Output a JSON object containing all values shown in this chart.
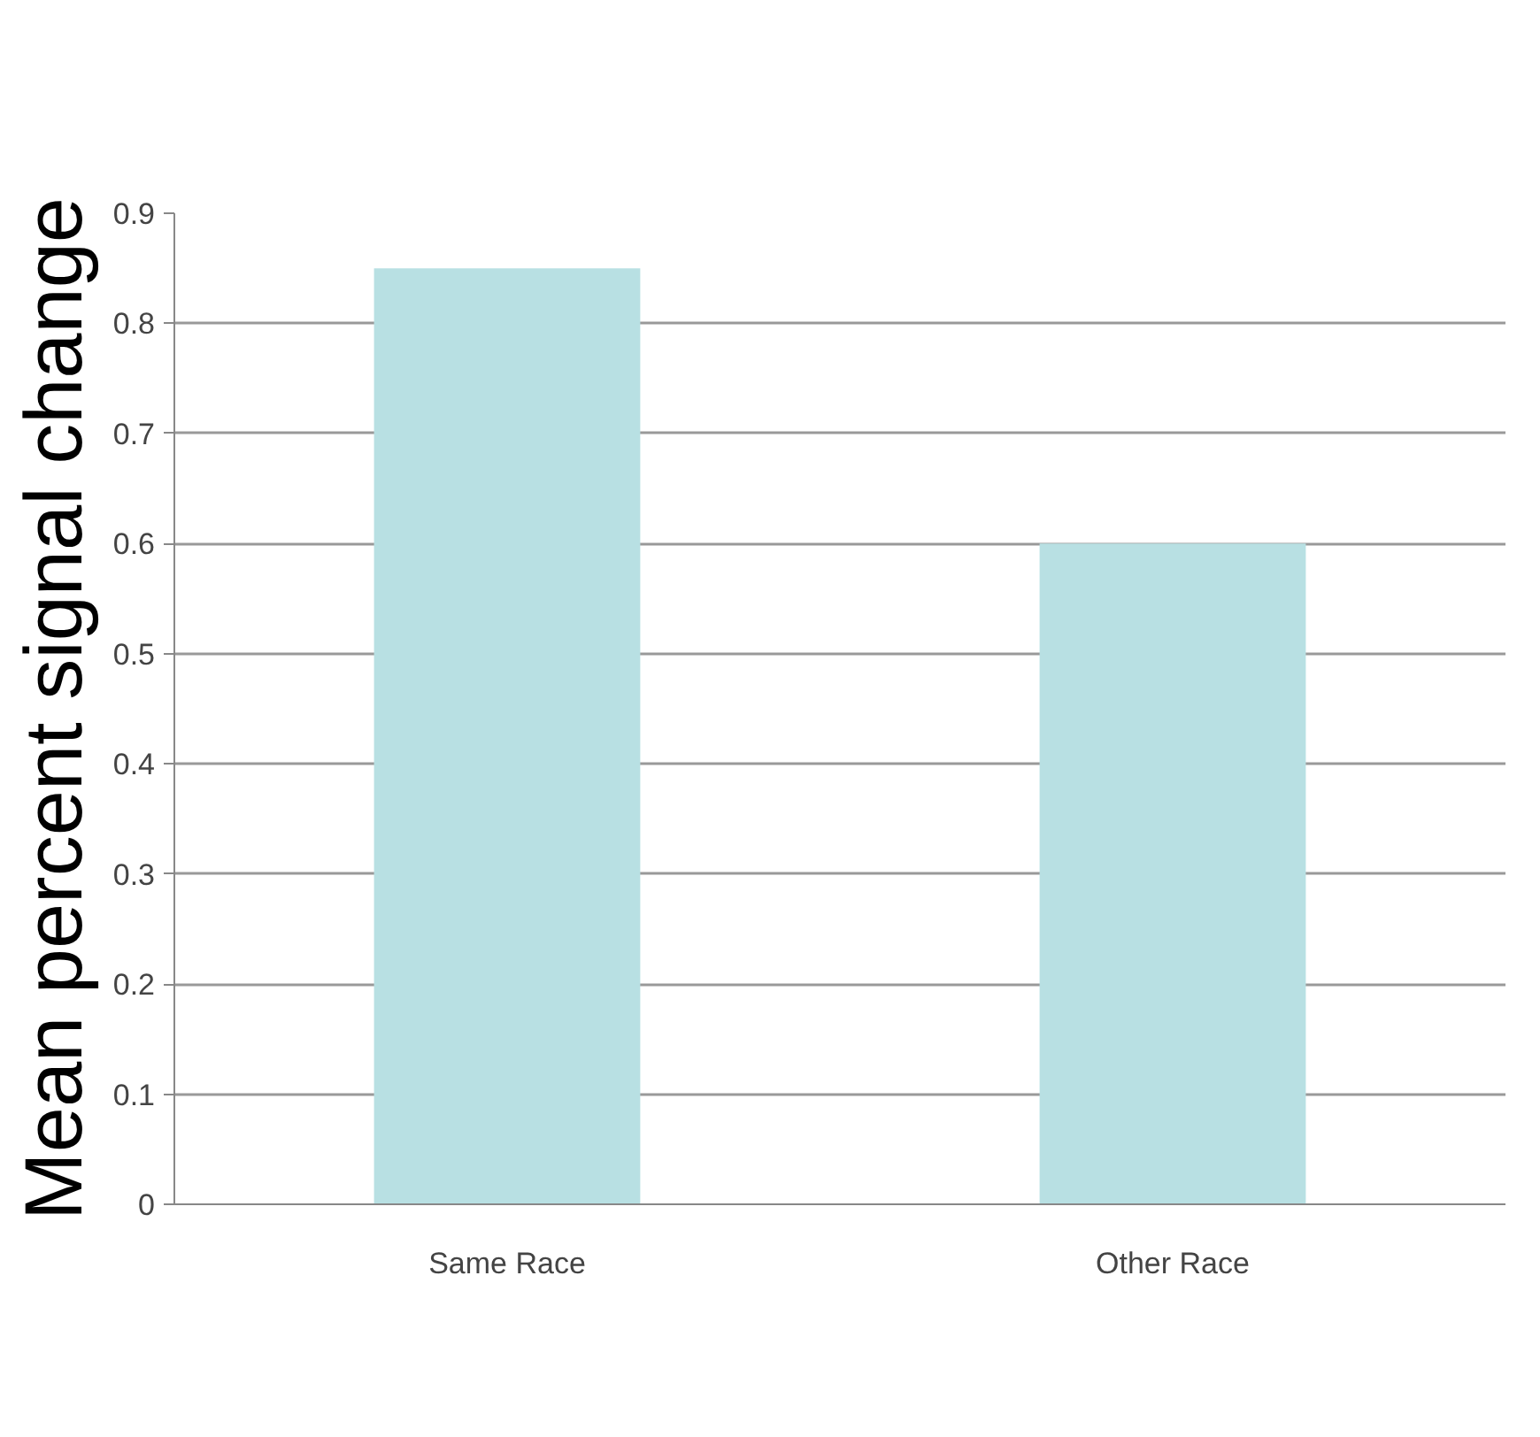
{
  "chart_data": {
    "type": "bar",
    "ylabel": "Mean percent signal change",
    "categories": [
      "Same Race",
      "Other Race"
    ],
    "values": [
      0.85,
      0.6
    ],
    "color": "#b8e0e3",
    "ylim": [
      0,
      0.9
    ],
    "yticks": [
      0,
      0.1,
      0.2,
      0.3,
      0.4,
      0.5,
      0.6,
      0.7,
      0.8,
      0.9
    ],
    "grid": "y"
  }
}
